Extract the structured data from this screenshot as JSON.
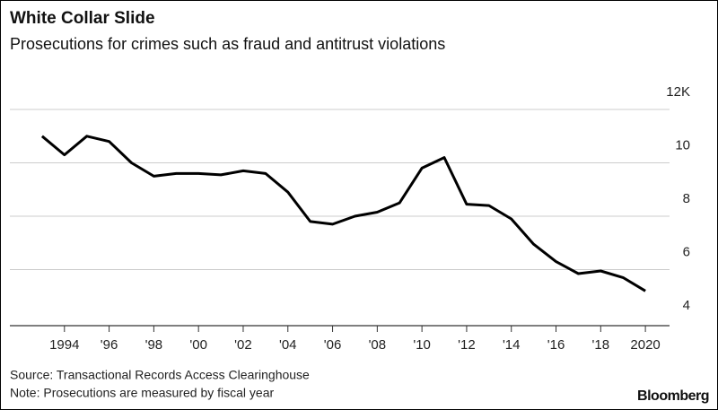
{
  "chart_data": {
    "type": "line",
    "title": "White Collar Slide",
    "subtitle": "Prosecutions for crimes such as fraud and antitrust violations",
    "source": "Source: Transactional Records Access Clearinghouse",
    "note": "Note: Prosecutions are measured by fiscal year",
    "brand": "Bloomberg",
    "x": [
      1993,
      1994,
      1995,
      1996,
      1997,
      1998,
      1999,
      2000,
      2001,
      2002,
      2003,
      2004,
      2005,
      2006,
      2007,
      2008,
      2009,
      2010,
      2011,
      2012,
      2013,
      2014,
      2015,
      2016,
      2017,
      2018,
      2019,
      2020
    ],
    "series": [
      {
        "color": "#000000",
        "values": [
          11.0,
          10.3,
          11.0,
          10.8,
          10.0,
          9.5,
          9.6,
          9.6,
          9.55,
          9.7,
          9.6,
          8.9,
          7.8,
          7.7,
          8.0,
          8.15,
          8.5,
          9.8,
          10.2,
          8.45,
          8.4,
          7.9,
          6.95,
          6.3,
          5.85,
          5.95,
          5.7,
          5.2
        ]
      }
    ],
    "xlim": [
      1992,
      2021
    ],
    "xticks": [
      1994,
      {
        "value": 1996,
        "label": "'96"
      },
      {
        "value": 1998,
        "label": "'98"
      },
      {
        "value": 2000,
        "label": "'00"
      },
      {
        "value": 2002,
        "label": "'02"
      },
      {
        "value": 2004,
        "label": "'04"
      },
      {
        "value": 2006,
        "label": "'06"
      },
      {
        "value": 2008,
        "label": "'08"
      },
      {
        "value": 2010,
        "label": "'10"
      },
      {
        "value": 2012,
        "label": "'12"
      },
      {
        "value": 2014,
        "label": "'14"
      },
      {
        "value": 2016,
        "label": "'16"
      },
      {
        "value": 2018,
        "label": "'18"
      },
      2020
    ],
    "ylim": [
      4,
      12
    ],
    "yticks": [
      4,
      6,
      8,
      10,
      {
        "value": 12,
        "label": "12K"
      }
    ],
    "grid": true
  }
}
